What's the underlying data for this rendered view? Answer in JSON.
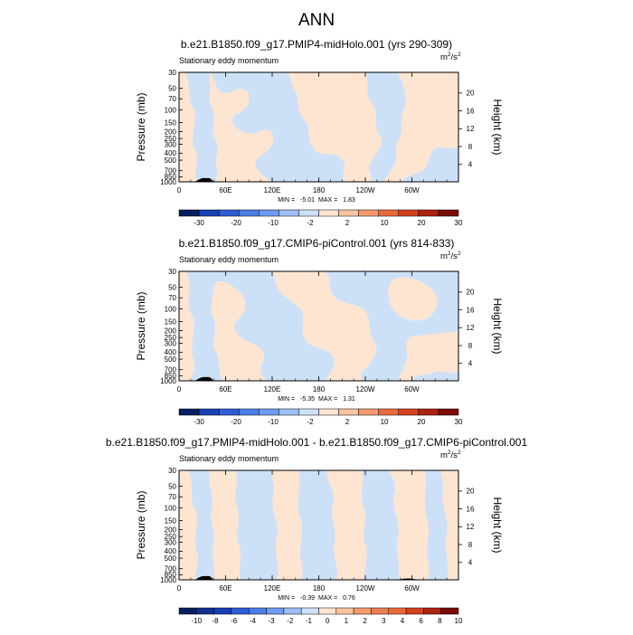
{
  "title": "ANN",
  "colors": {
    "neg_light": "#cce1f8",
    "pos_light": "#fde5d2",
    "bar_edge": "#000000"
  },
  "panels": [
    {
      "title": "b.e21.B1850.f09_g17.PMIP4-midHolo.001 (yrs 290-309)",
      "variable": "Stationary eddy momentum",
      "units_base": "m",
      "units_sup1": "2",
      "units_mid": "/s",
      "units_sup2": "2",
      "ylabel": "Pressure (mb)",
      "y2label": "Height (km)",
      "min_label": "MIN = ",
      "min_value": "-5.01",
      "max_label": "MAX = ",
      "max_value": "1.83",
      "colorbar_labels": [
        "-30",
        "-20",
        "-10",
        "-2",
        "2",
        "10",
        "20",
        "30"
      ],
      "colorbar_colors": [
        "#051f61",
        "#1a3fb3",
        "#2d5ed6",
        "#4b7fe6",
        "#6d9cf0",
        "#9cbff6",
        "#cce1f8",
        "#fde5d2",
        "#f8c3a0",
        "#f49a6e",
        "#e86a3c",
        "#d4411d",
        "#ad220f",
        "#7a0c03"
      ]
    },
    {
      "title": "b.e21.B1850.f09_g17.CMIP6-piControl.001 (yrs 814-833)",
      "variable": "Stationary eddy momentum",
      "units_base": "m",
      "units_sup1": "2",
      "units_mid": "/s",
      "units_sup2": "2",
      "ylabel": "Pressure (mb)",
      "y2label": "Height (km)",
      "min_label": "MIN = ",
      "min_value": "-5.35",
      "max_label": "MAX = ",
      "max_value": "1.31",
      "colorbar_labels": [
        "-30",
        "-20",
        "-10",
        "-2",
        "2",
        "10",
        "20",
        "30"
      ],
      "colorbar_colors": [
        "#051f61",
        "#1a3fb3",
        "#2d5ed6",
        "#4b7fe6",
        "#6d9cf0",
        "#9cbff6",
        "#cce1f8",
        "#fde5d2",
        "#f8c3a0",
        "#f49a6e",
        "#e86a3c",
        "#d4411d",
        "#ad220f",
        "#7a0c03"
      ]
    },
    {
      "title": "b.e21.B1850.f09_g17.PMIP4-midHolo.001 - b.e21.B1850.f09_g17.CMIP6-piControl.001",
      "variable": "Stationary eddy momentum",
      "units_base": "m",
      "units_sup1": "2",
      "units_mid": "/s",
      "units_sup2": "2",
      "ylabel": "Pressure (mb)",
      "y2label": "Height (km)",
      "min_label": "MIN = ",
      "min_value": "-0.39",
      "max_label": "MAX = ",
      "max_value": "0.76",
      "colorbar_labels": [
        "-10",
        "-8",
        "-6",
        "-4",
        "-3",
        "-2",
        "-1",
        "0",
        "1",
        "2",
        "3",
        "4",
        "6",
        "8",
        "10"
      ],
      "colorbar_colors": [
        "#051f61",
        "#12308f",
        "#1a3fb3",
        "#2d5ed6",
        "#4b7fe6",
        "#6d9cf0",
        "#9cbff6",
        "#cce1f8",
        "#fde5d2",
        "#f8c3a0",
        "#f49a6e",
        "#ec7f52",
        "#e86a3c",
        "#d4411d",
        "#ad220f",
        "#7a0c03"
      ]
    }
  ],
  "chart_data": [
    {
      "type": "heatmap",
      "title": "b.e21.B1850.f09_g17.PMIP4-midHolo.001 (yrs 290-309)",
      "subtitle": "Stationary eddy momentum",
      "xlabel": "",
      "ylabel": "Pressure (mb)",
      "y2label": "Height (km)",
      "x_ticks": [
        "0",
        "60E",
        "120E",
        "180",
        "120W",
        "60W"
      ],
      "y_ticks": [
        30,
        50,
        70,
        100,
        150,
        200,
        250,
        300,
        400,
        500,
        700,
        850,
        1000
      ],
      "y2_ticks": [
        4,
        8,
        12,
        16,
        20
      ],
      "y_scale": "log",
      "y_reversed": true,
      "ylim": [
        1000,
        30
      ],
      "xlim": [
        0,
        360
      ],
      "min": -5.01,
      "max": 1.83,
      "contour_levels": [
        -30,
        -20,
        -10,
        -2,
        2,
        10,
        20,
        30
      ]
    },
    {
      "type": "heatmap",
      "title": "b.e21.B1850.f09_g17.CMIP6-piControl.001 (yrs 814-833)",
      "subtitle": "Stationary eddy momentum",
      "xlabel": "",
      "ylabel": "Pressure (mb)",
      "y2label": "Height (km)",
      "x_ticks": [
        "0",
        "60E",
        "120E",
        "180",
        "120W",
        "60W"
      ],
      "y_ticks": [
        30,
        50,
        70,
        100,
        150,
        200,
        250,
        300,
        400,
        500,
        700,
        850,
        1000
      ],
      "y2_ticks": [
        4,
        8,
        12,
        16,
        20
      ],
      "y_scale": "log",
      "y_reversed": true,
      "ylim": [
        1000,
        30
      ],
      "xlim": [
        0,
        360
      ],
      "min": -5.35,
      "max": 1.31,
      "contour_levels": [
        -30,
        -20,
        -10,
        -2,
        2,
        10,
        20,
        30
      ]
    },
    {
      "type": "heatmap",
      "title": "b.e21.B1850.f09_g17.PMIP4-midHolo.001 - b.e21.B1850.f09_g17.CMIP6-piControl.001",
      "subtitle": "Stationary eddy momentum",
      "xlabel": "",
      "ylabel": "Pressure (mb)",
      "y2label": "Height (km)",
      "x_ticks": [
        "0",
        "60E",
        "120E",
        "180",
        "120W",
        "60W"
      ],
      "y_ticks": [
        30,
        50,
        70,
        100,
        150,
        200,
        250,
        300,
        400,
        500,
        700,
        850,
        1000
      ],
      "y2_ticks": [
        4,
        8,
        12,
        16,
        20
      ],
      "y_scale": "log",
      "y_reversed": true,
      "ylim": [
        1000,
        30
      ],
      "xlim": [
        0,
        360
      ],
      "min": -0.39,
      "max": 0.76,
      "contour_levels": [
        -10,
        -8,
        -6,
        -4,
        -3,
        -2,
        -1,
        0,
        1,
        2,
        3,
        4,
        6,
        8,
        10
      ]
    }
  ]
}
